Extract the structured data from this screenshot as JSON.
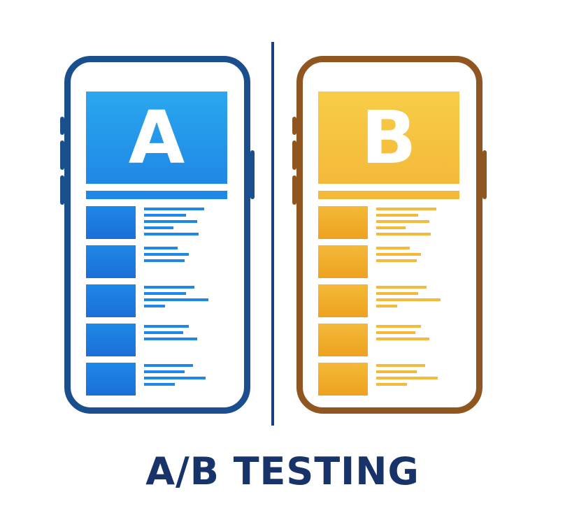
{
  "colors": {
    "a_frame": "#1b4e8c",
    "a_light": "#2aa7ee",
    "a_mid": "#1f88e6",
    "a_dark": "#1a6fd8",
    "b_frame": "#8f5620",
    "b_light": "#f7cd47",
    "b_mid": "#f4b93a",
    "b_dark": "#eda21f",
    "divider": "#1a3f82",
    "title": "#17336a"
  },
  "variant_a": {
    "letter": "A"
  },
  "variant_b": {
    "letter": "B"
  },
  "rows": 5,
  "title": "A/B TESTING"
}
